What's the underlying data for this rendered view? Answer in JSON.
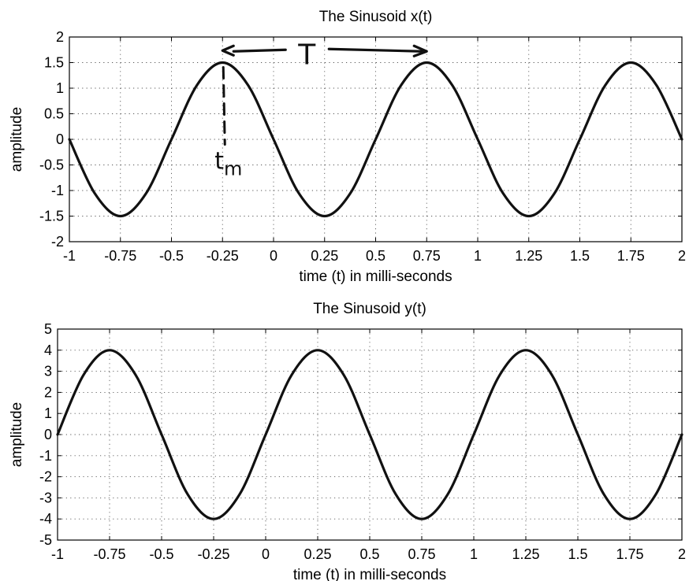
{
  "chart_data": [
    {
      "type": "line",
      "title": "The Sinusoid x(t)",
      "xlabel": "time (t) in milli-seconds",
      "ylabel": "amplitude",
      "xlim": [
        -1,
        2
      ],
      "ylim": [
        -2,
        2
      ],
      "xticks": [
        "-1",
        "-0.75",
        "-0.5",
        "-0.25",
        "0",
        "0.25",
        "0.5",
        "0.75",
        "1",
        "1.25",
        "1.5",
        "1.75",
        "2"
      ],
      "yticks": [
        "-2",
        "-1.5",
        "-1",
        "-0.5",
        "0",
        "0.5",
        "1",
        "1.5",
        "2"
      ],
      "grid": true,
      "x": [
        -1,
        -0.875,
        -0.75,
        -0.625,
        -0.5,
        -0.375,
        -0.25,
        -0.125,
        0,
        0.125,
        0.25,
        0.375,
        0.5,
        0.625,
        0.75,
        0.875,
        1,
        1.125,
        1.25,
        1.375,
        1.5,
        1.625,
        1.75,
        1.875,
        2
      ],
      "series": [
        {
          "values": [
            0,
            -1.06,
            -1.5,
            -1.06,
            0,
            1.06,
            1.5,
            1.06,
            0,
            -1.06,
            -1.5,
            -1.06,
            0,
            1.06,
            1.5,
            1.06,
            0,
            -1.06,
            -1.5,
            -1.06,
            0,
            1.06,
            1.5,
            1.06,
            0
          ]
        }
      ],
      "annotations": {
        "period_label": "T",
        "peak_time_label_main": "t",
        "peak_time_label_sub": "m"
      }
    },
    {
      "type": "line",
      "title": "The Sinusoid y(t)",
      "xlabel": "time (t) in milli-seconds",
      "ylabel": "amplitude",
      "xlim": [
        -1,
        2
      ],
      "ylim": [
        -5,
        5
      ],
      "xticks": [
        "-1",
        "-0.75",
        "-0.5",
        "-0.25",
        "0",
        "0.25",
        "0.5",
        "0.75",
        "1",
        "1.25",
        "1.5",
        "1.75",
        "2"
      ],
      "yticks": [
        "-5",
        "-4",
        "-3",
        "-2",
        "-1",
        "0",
        "1",
        "2",
        "3",
        "4",
        "5"
      ],
      "grid": true,
      "x": [
        -1,
        -0.875,
        -0.75,
        -0.625,
        -0.5,
        -0.375,
        -0.25,
        -0.125,
        0,
        0.125,
        0.25,
        0.375,
        0.5,
        0.625,
        0.75,
        0.875,
        1,
        1.125,
        1.25,
        1.375,
        1.5,
        1.625,
        1.75,
        1.875,
        2
      ],
      "series": [
        {
          "values": [
            0,
            2.83,
            4,
            2.83,
            0,
            -2.83,
            -4,
            -2.83,
            0,
            2.83,
            4,
            2.83,
            0,
            -2.83,
            -4,
            -2.83,
            0,
            2.83,
            4,
            2.83,
            0,
            -2.83,
            -4,
            -2.83,
            0
          ]
        }
      ]
    }
  ]
}
